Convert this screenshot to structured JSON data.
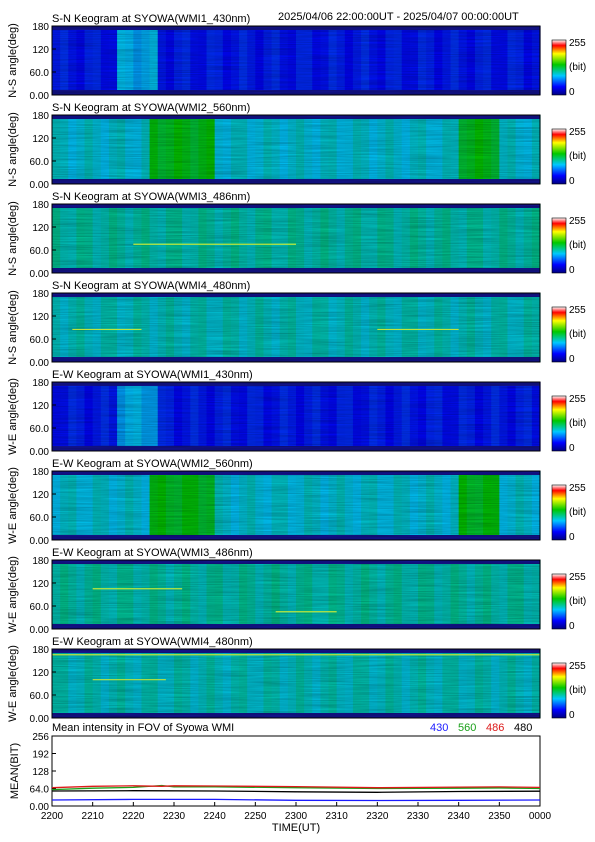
{
  "header": {
    "time_range": "2025/04/06 22:00:00UT - 2025/04/07 00:00:00UT"
  },
  "colorbar": {
    "max_label": "255",
    "unit_label": "(bit)",
    "min_label": "0"
  },
  "keogram_tick_labels": [
    "180",
    "120",
    "60.0",
    "0.00"
  ],
  "chart_data": [
    {
      "type": "heatmap",
      "title": "S-N Keogram at SYOWA(WMI1_430nm)",
      "ylabel": "N-S angle(deg)",
      "ylim": [
        0,
        180
      ],
      "zlim": [
        0,
        255
      ],
      "base_intensity": 45,
      "bright_times_min": [
        17,
        25
      ],
      "thin_line_segments": []
    },
    {
      "type": "heatmap",
      "title": "S-N Keogram at SYOWA(WMI2_560nm)",
      "ylabel": "N-S angle(deg)",
      "ylim": [
        0,
        180
      ],
      "zlim": [
        0,
        255
      ],
      "base_intensity": 95,
      "bright_times_min": [
        25,
        40,
        100,
        110
      ],
      "thin_line_segments": []
    },
    {
      "type": "heatmap",
      "title": "S-N Keogram at SYOWA(WMI3_486nm)",
      "ylabel": "N-S angle(deg)",
      "ylim": [
        0,
        180
      ],
      "zlim": [
        0,
        255
      ],
      "base_intensity": 105,
      "bright_times_min": [],
      "thin_line_segments": [
        {
          "t_start": 20,
          "t_end": 60,
          "angle": 75
        }
      ]
    },
    {
      "type": "heatmap",
      "title": "S-N Keogram at SYOWA(WMI4_480nm)",
      "ylabel": "N-S angle(deg)",
      "ylim": [
        0,
        180
      ],
      "zlim": [
        0,
        255
      ],
      "base_intensity": 100,
      "bright_times_min": [],
      "thin_line_segments": [
        {
          "t_start": 5,
          "t_end": 22,
          "angle": 85
        },
        {
          "t_start": 80,
          "t_end": 100,
          "angle": 85
        }
      ]
    },
    {
      "type": "heatmap",
      "title": "E-W Keogram at SYOWA(WMI1_430nm)",
      "ylabel": "W-E angle(deg)",
      "ylim": [
        0,
        180
      ],
      "zlim": [
        0,
        255
      ],
      "base_intensity": 45,
      "bright_times_min": [
        17,
        25
      ],
      "thin_line_segments": []
    },
    {
      "type": "heatmap",
      "title": "E-W Keogram at SYOWA(WMI2_560nm)",
      "ylabel": "W-E angle(deg)",
      "ylim": [
        0,
        180
      ],
      "zlim": [
        0,
        255
      ],
      "base_intensity": 95,
      "bright_times_min": [
        25,
        40,
        100,
        110
      ],
      "thin_line_segments": []
    },
    {
      "type": "heatmap",
      "title": "E-W Keogram at SYOWA(WMI3_486nm)",
      "ylabel": "W-E angle(deg)",
      "ylim": [
        0,
        180
      ],
      "zlim": [
        0,
        255
      ],
      "base_intensity": 105,
      "bright_times_min": [],
      "thin_line_segments": [
        {
          "t_start": 10,
          "t_end": 32,
          "angle": 105
        },
        {
          "t_start": 55,
          "t_end": 70,
          "angle": 45
        }
      ]
    },
    {
      "type": "heatmap",
      "title": "E-W Keogram at SYOWA(WMI4_480nm)",
      "ylabel": "W-E angle(deg)",
      "ylim": [
        0,
        180
      ],
      "zlim": [
        0,
        255
      ],
      "base_intensity": 100,
      "bright_times_min": [],
      "thin_line_segments": [
        {
          "t_start": 10,
          "t_end": 28,
          "angle": 100
        },
        {
          "t_start": 0,
          "t_end": 120,
          "angle": 165
        }
      ]
    },
    {
      "type": "line",
      "title": "Mean intensity in FOV of Syowa WMI",
      "ylabel": "MEAN(BIT)",
      "xlabel": "TIME(UT)",
      "xlim": [
        0,
        120
      ],
      "ylim": [
        0,
        256
      ],
      "y_ticks": [
        "256",
        "192",
        "128",
        "64.0",
        "0.00"
      ],
      "x_ticks": [
        "2200",
        "2210",
        "2220",
        "2230",
        "2240",
        "2250",
        "2300",
        "2310",
        "2320",
        "2330",
        "2340",
        "2350",
        "0000"
      ],
      "series": [
        {
          "name": "430",
          "color": "#1a1aff",
          "x": [
            0,
            20,
            40,
            60,
            80,
            100,
            120
          ],
          "y": [
            22,
            24,
            24,
            21,
            20,
            21,
            22
          ]
        },
        {
          "name": "560",
          "color": "#1aa01a",
          "x": [
            0,
            10,
            20,
            27,
            30,
            40,
            60,
            80,
            100,
            110,
            120
          ],
          "y": [
            60,
            65,
            68,
            75,
            70,
            70,
            67,
            64,
            65,
            66,
            64
          ]
        },
        {
          "name": "486",
          "color": "#dd1a1a",
          "x": [
            0,
            10,
            20,
            27,
            30,
            40,
            60,
            80,
            100,
            110,
            120
          ],
          "y": [
            67,
            72,
            74,
            72,
            74,
            73,
            71,
            67,
            69,
            70,
            68
          ]
        },
        {
          "name": "480",
          "color": "#000000",
          "x": [
            0,
            20,
            40,
            60,
            80,
            100,
            120
          ],
          "y": [
            55,
            56,
            55,
            52,
            50,
            53,
            54
          ]
        }
      ]
    }
  ]
}
